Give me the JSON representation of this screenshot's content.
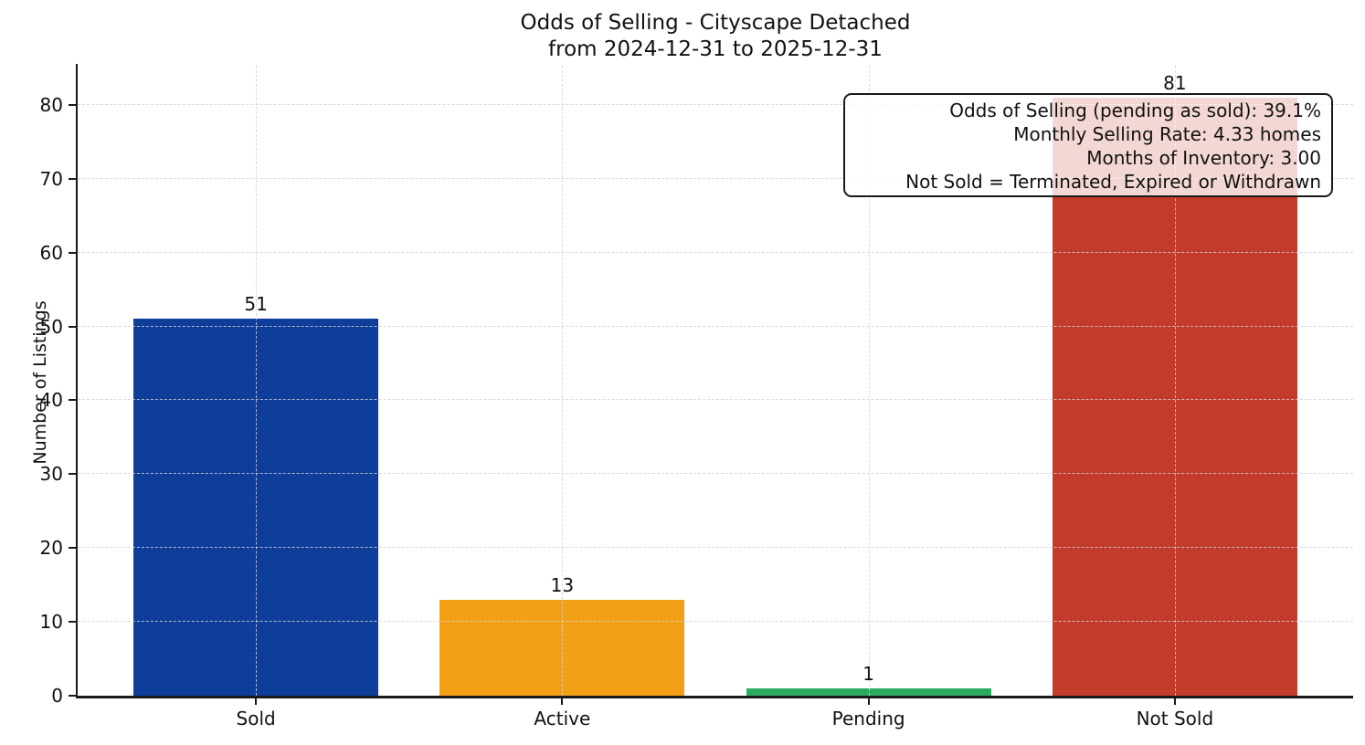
{
  "chart_data": {
    "type": "bar",
    "title": "Odds of Selling - Cityscape Detached",
    "subtitle": "from 2024-12-31 to 2025-12-31",
    "ylabel": "Number of Listings",
    "xlabel": "",
    "categories": [
      "Sold",
      "Active",
      "Pending",
      "Not Sold"
    ],
    "values": [
      51,
      13,
      1,
      81
    ],
    "bar_colors": [
      "#0e3d9a",
      "#f3a017",
      "#2bab5e",
      "#c23b2b"
    ],
    "yticks": [
      0,
      10,
      20,
      30,
      40,
      50,
      60,
      70,
      80
    ],
    "ylim": [
      0,
      85.3
    ],
    "grid": true,
    "legend_position": "none",
    "annotation": {
      "lines": [
        "Odds of Selling (pending as sold): 39.1%",
        "Monthly Selling Rate: 4.33 homes",
        "Months of Inventory: 3.00",
        "Not Sold = Terminated, Expired or Withdrawn"
      ]
    }
  }
}
